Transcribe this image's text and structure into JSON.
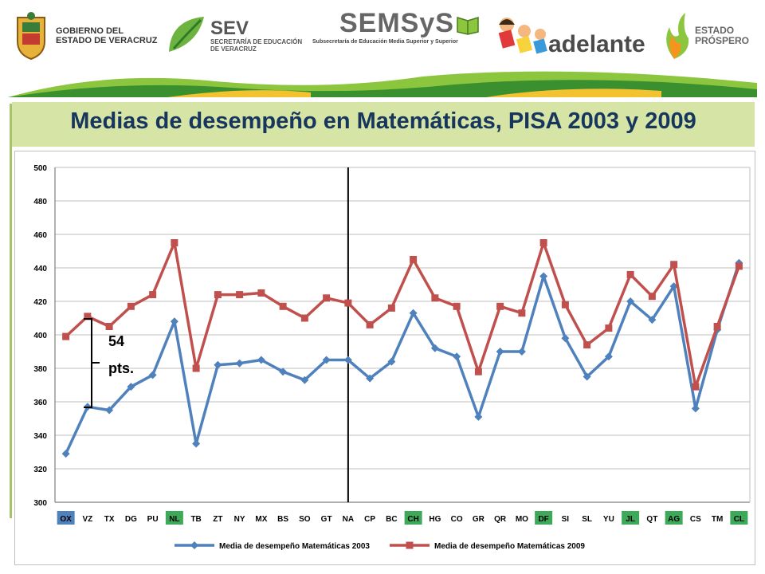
{
  "header": {
    "logo1_line1": "GOBIERNO DEL",
    "logo1_line2": "ESTADO DE VERACRUZ",
    "logo2_name": "SEV",
    "logo2_line1": "SECRETARÍA DE EDUCACIÓN",
    "logo2_line2": "DE VERACRUZ",
    "logo3_name": "SEMSyS",
    "logo3_sub": "Subsecretaría de Educación Media Superior y Superior",
    "logo4_name": "adelante",
    "logo5_line1": "ESTADO",
    "logo5_line2": "PRÓSPERO"
  },
  "title": "Medias de desempeño en Matemáticas, PISA 2003 y 2009",
  "annotation": {
    "line1": "54",
    "line2": "pts."
  },
  "colors": {
    "series_2003": "#4f81bd",
    "series_2009": "#c0504d",
    "highlight_green": "#3daa5a",
    "highlight_blue": "#4f81bd",
    "title_text": "#17365d",
    "title_bar": "#d6e5a5"
  },
  "chart_data": {
    "type": "line",
    "categories": [
      "OX",
      "VZ",
      "TX",
      "DG",
      "PU",
      "NL",
      "TB",
      "ZT",
      "NY",
      "MX",
      "BS",
      "SO",
      "GT",
      "NA",
      "CP",
      "BC",
      "CH",
      "HG",
      "CO",
      "GR",
      "QR",
      "MO",
      "DF",
      "SI",
      "SL",
      "YU",
      "JL",
      "QT",
      "AG",
      "CS",
      "TM",
      "CL"
    ],
    "highlighted_green": [
      "NL",
      "CH",
      "DF",
      "JL",
      "AG",
      "CL"
    ],
    "highlighted_blue": [
      "OX"
    ],
    "series": [
      {
        "name": "Media de desempeño Matemáticas 2003",
        "values": [
          329,
          357,
          355,
          369,
          376,
          408,
          335,
          382,
          383,
          385,
          378,
          373,
          385,
          385,
          374,
          384,
          413,
          392,
          387,
          351,
          390,
          390,
          435,
          398,
          375,
          387,
          420,
          409,
          429,
          356,
          403,
          443
        ]
      },
      {
        "name": "Media de desempeño Matemáticas 2009",
        "values": [
          399,
          411,
          405,
          417,
          424,
          455,
          380,
          424,
          424,
          425,
          417,
          410,
          422,
          419,
          406,
          416,
          445,
          422,
          417,
          378,
          417,
          413,
          455,
          418,
          394,
          404,
          436,
          423,
          442,
          369,
          405,
          441
        ]
      }
    ],
    "ylim": [
      300,
      500
    ],
    "yticks": [
      300,
      320,
      340,
      360,
      380,
      400,
      420,
      440,
      460,
      480,
      500
    ],
    "grid": true,
    "legend": "bottom",
    "divider_after": "NA"
  }
}
